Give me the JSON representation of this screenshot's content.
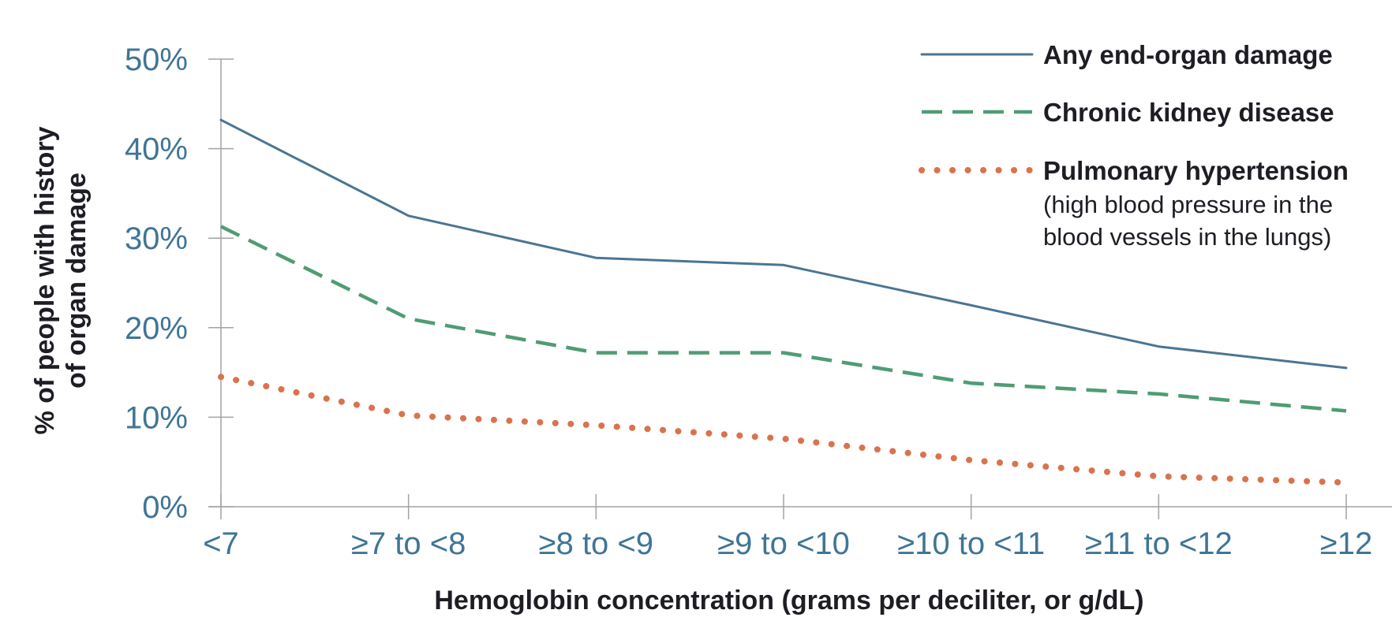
{
  "chart_data": {
    "type": "line",
    "categories": [
      "<7",
      "≥7 to <8",
      "≥8 to <9",
      "≥9 to <10",
      "≥10 to <11",
      "≥11 to <12",
      "≥12"
    ],
    "series": [
      {
        "name": "Any end-organ damage",
        "note": "",
        "color": "#4a7592",
        "style": "solid",
        "values": [
          43.2,
          32.5,
          27.8,
          27.0,
          22.5,
          17.9,
          15.5
        ]
      },
      {
        "name": "Chronic kidney disease",
        "note": "",
        "color": "#4f9c74",
        "style": "dashed",
        "values": [
          31.3,
          21.0,
          17.2,
          17.2,
          13.8,
          12.6,
          10.7
        ]
      },
      {
        "name": "Pulmonary hypertension",
        "note": "(high blood pressure in the blood vessels in the lungs)",
        "note_lines": [
          "(high blood pressure in the",
          "blood vessels in the lungs)"
        ],
        "color": "#d9734e",
        "style": "dotted",
        "values": [
          14.5,
          10.2,
          9.1,
          7.6,
          5.2,
          3.4,
          2.7
        ]
      }
    ],
    "yticks": [
      "0%",
      "10%",
      "20%",
      "30%",
      "40%",
      "50%"
    ],
    "ylim": [
      0,
      50
    ],
    "ylabel_lines": [
      "% of people with history",
      "of organ damage"
    ],
    "xlabel": "Hemoglobin concentration (grams per deciliter, or g/dL)",
    "legend_placement": "top-right",
    "grid": false
  }
}
